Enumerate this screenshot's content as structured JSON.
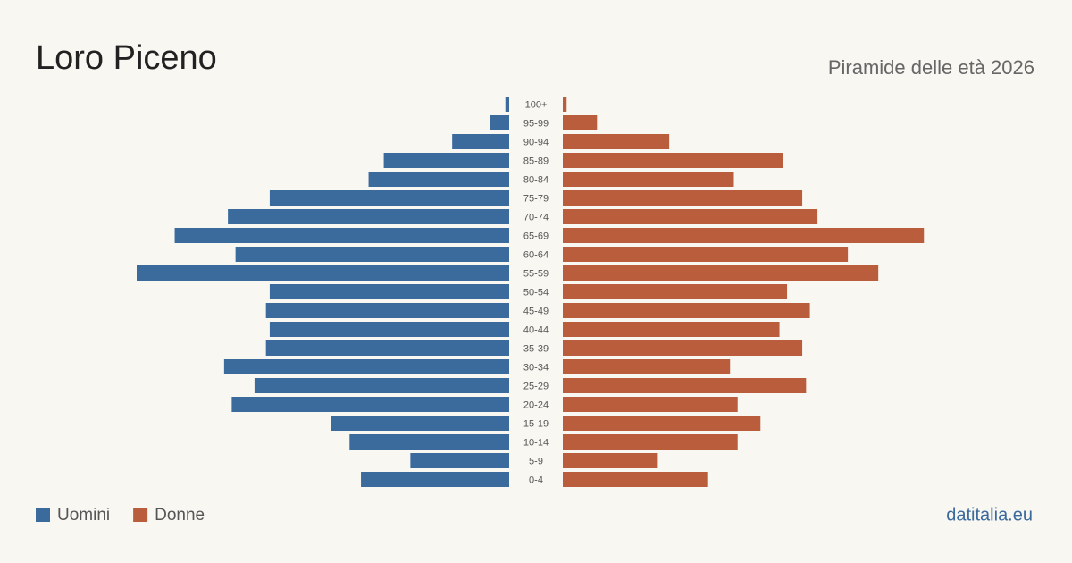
{
  "chart_data": {
    "type": "pyramid",
    "title": "Loro Piceno",
    "subtitle": "Piramide delle età 2026",
    "source": "datitalia.eu",
    "categories": [
      "100+",
      "95-99",
      "90-94",
      "85-89",
      "80-84",
      "75-79",
      "70-74",
      "65-69",
      "60-64",
      "55-59",
      "50-54",
      "45-49",
      "40-44",
      "35-39",
      "30-34",
      "25-29",
      "20-24",
      "15-19",
      "10-14",
      "5-9",
      "0-4"
    ],
    "series": [
      {
        "name": "Uomini",
        "color": "#3b6a9c",
        "values": [
          1,
          5,
          15,
          33,
          37,
          63,
          74,
          88,
          72,
          98,
          63,
          64,
          63,
          64,
          75,
          67,
          73,
          47,
          42,
          26,
          39
        ]
      },
      {
        "name": "Donne",
        "color": "#b95d3d",
        "values": [
          1,
          9,
          28,
          58,
          45,
          63,
          67,
          95,
          75,
          83,
          59,
          65,
          57,
          63,
          44,
          64,
          46,
          52,
          46,
          25,
          38
        ]
      }
    ]
  }
}
